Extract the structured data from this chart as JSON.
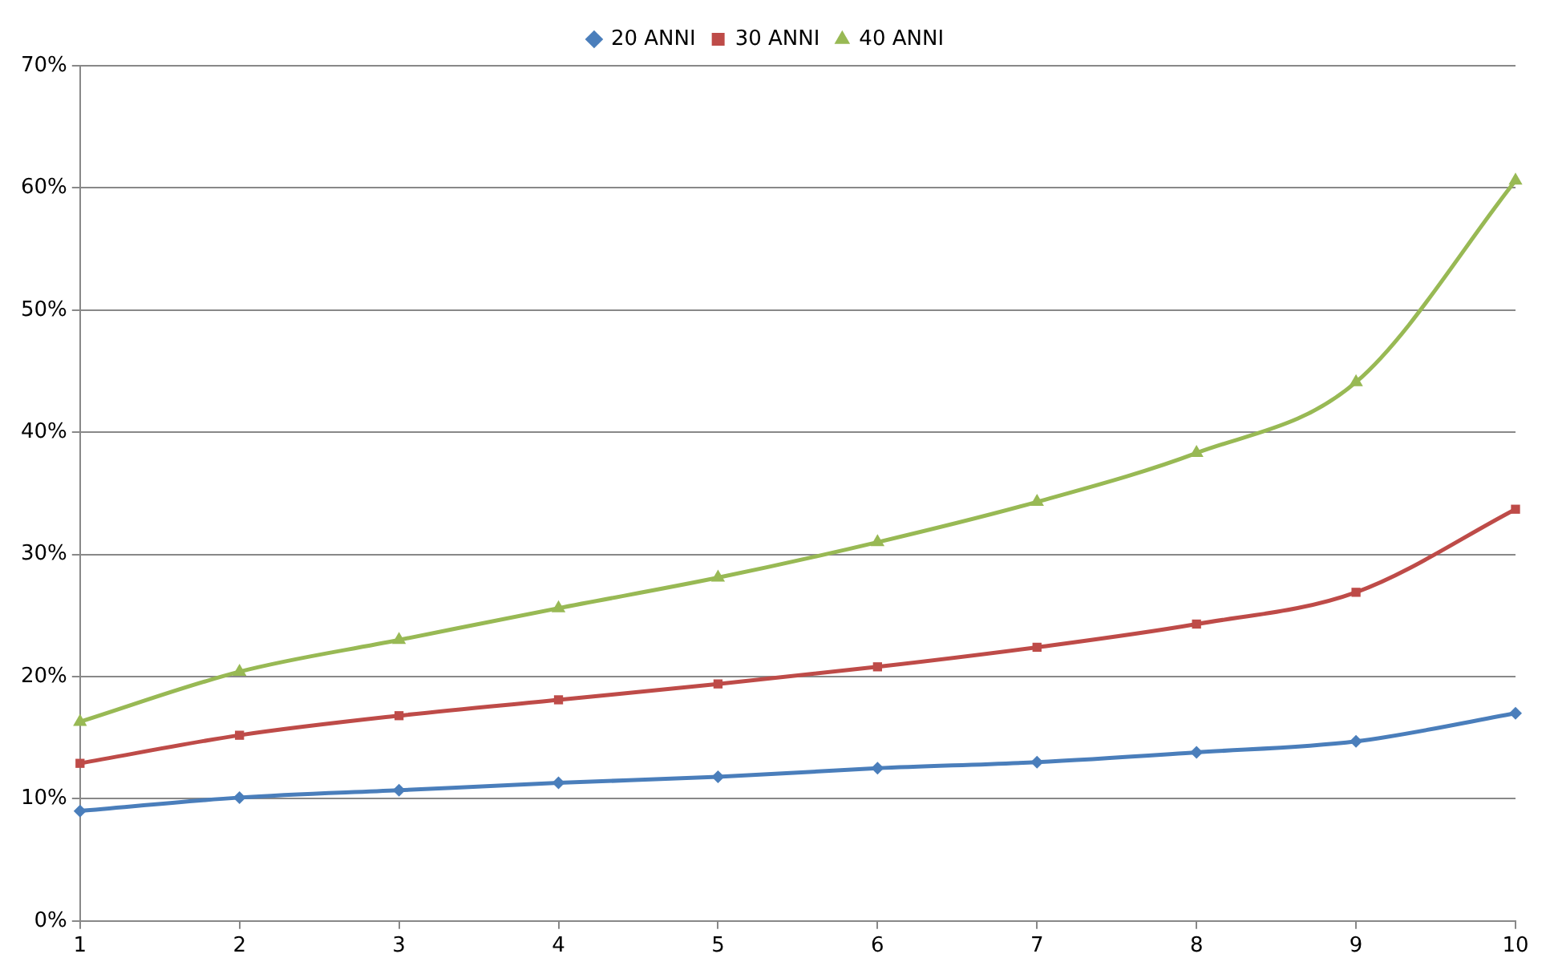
{
  "chart_data": {
    "type": "line",
    "x": [
      1,
      2,
      3,
      4,
      5,
      6,
      7,
      8,
      9,
      10
    ],
    "series": [
      {
        "name": "20 ANNI",
        "color": "#4a7ebb",
        "marker": "diamond",
        "values": [
          9.0,
          10.1,
          10.7,
          11.3,
          11.8,
          12.5,
          13.0,
          13.8,
          14.7,
          17.0
        ]
      },
      {
        "name": "30 ANNI",
        "color": "#be4b48",
        "marker": "square",
        "values": [
          12.9,
          15.2,
          16.8,
          18.1,
          19.4,
          20.8,
          22.4,
          24.3,
          26.9,
          33.7
        ]
      },
      {
        "name": "40 ANNI",
        "color": "#98b954",
        "marker": "triangle",
        "values": [
          16.3,
          20.4,
          23.0,
          25.6,
          28.1,
          31.0,
          34.3,
          38.3,
          44.1,
          60.6
        ]
      }
    ],
    "xlim": [
      1,
      10
    ],
    "xticks": [
      1,
      2,
      3,
      4,
      5,
      6,
      7,
      8,
      9,
      10
    ],
    "ylim": [
      0,
      70
    ],
    "yticks": [
      {
        "value": 0,
        "label": "0%"
      },
      {
        "value": 10,
        "label": "10%"
      },
      {
        "value": 20,
        "label": "20%"
      },
      {
        "value": 30,
        "label": "30%"
      },
      {
        "value": 40,
        "label": "40%"
      },
      {
        "value": 50,
        "label": "50%"
      },
      {
        "value": 60,
        "label": "60%"
      },
      {
        "value": 70,
        "label": "70%"
      }
    ],
    "grid": "y",
    "legend": "top",
    "line_style": "solid"
  }
}
